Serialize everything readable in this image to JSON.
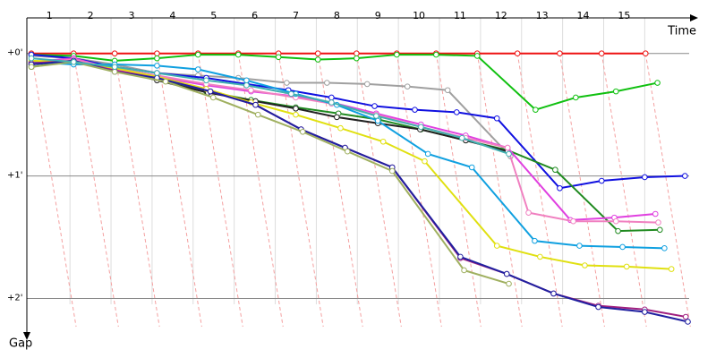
{
  "chart_data": {
    "type": "line",
    "x_label": "Time",
    "y_label": "Gap",
    "xlim": [
      0.45,
      16.8
    ],
    "xticks": [
      1,
      2,
      3,
      4,
      5,
      6,
      7,
      8,
      9,
      10,
      11,
      12,
      13,
      14,
      15
    ],
    "ylim": [
      -0.29,
      2.34
    ],
    "yticks": [
      {
        "value": 0,
        "label": "+0'"
      },
      {
        "value": 1,
        "label": "+1'"
      },
      {
        "value": 2,
        "label": "+2'"
      }
    ],
    "grid": true,
    "series": [
      {
        "color": "#ee1111",
        "x": [
          0.56,
          1.59,
          2.59,
          3.62,
          4.62,
          5.6,
          6.58,
          7.54,
          8.48,
          9.46,
          10.42,
          11.42,
          12.4,
          13.43,
          14.45,
          15.52
        ],
        "values": [
          0,
          0,
          0,
          0,
          0,
          0,
          0,
          0,
          0,
          0,
          0,
          0,
          0,
          0,
          0,
          0
        ]
      },
      {
        "color": "#10c010",
        "x": [
          0.56,
          1.59,
          2.59,
          3.62,
          4.62,
          5.6,
          6.58,
          7.54,
          8.48,
          9.46,
          10.42,
          11.42,
          12.84,
          13.82,
          14.8,
          15.81
        ],
        "values": [
          0.01,
          0.02,
          0.06,
          0.04,
          0.01,
          0.01,
          0.03,
          0.05,
          0.04,
          0.01,
          0.01,
          0.02,
          0.46,
          0.36,
          0.31,
          0.24
        ]
      },
      {
        "color": "#a0a0a0",
        "x": [
          0.56,
          1.59,
          2.59,
          3.62,
          4.62,
          5.6,
          6.78,
          7.76,
          8.74,
          9.72,
          10.7,
          12.23
        ],
        "values": [
          0.02,
          0.04,
          0.09,
          0.16,
          0.18,
          0.2,
          0.24,
          0.24,
          0.25,
          0.27,
          0.3,
          0.84
        ]
      },
      {
        "color": "#1010e0",
        "x": [
          0.56,
          1.59,
          2.59,
          3.62,
          4.82,
          5.8,
          6.82,
          7.87,
          8.92,
          9.9,
          10.92,
          11.9,
          13.43,
          14.45,
          15.5,
          16.48
        ],
        "values": [
          0.01,
          0.04,
          0.11,
          0.16,
          0.2,
          0.25,
          0.3,
          0.36,
          0.43,
          0.46,
          0.48,
          0.53,
          1.1,
          1.04,
          1.01,
          1.0
        ]
      },
      {
        "color": "#208a20",
        "x": [
          0.56,
          1.59,
          2.59,
          3.62,
          4.82,
          5.91,
          7.0,
          8.04,
          9.02,
          10.05,
          11.14,
          12.16,
          13.32,
          14.85,
          15.87
        ],
        "values": [
          0.11,
          0.06,
          0.13,
          0.2,
          0.31,
          0.38,
          0.44,
          0.49,
          0.54,
          0.62,
          0.71,
          0.79,
          0.95,
          1.45,
          1.44
        ]
      },
      {
        "color": "#222222",
        "x": [
          0.56,
          1.59,
          2.59,
          3.62,
          4.86,
          6.02,
          7.0,
          8.0,
          9.0,
          10.03,
          11.14,
          12.16
        ],
        "values": [
          0.09,
          0.05,
          0.13,
          0.22,
          0.32,
          0.39,
          0.45,
          0.52,
          0.57,
          0.62,
          0.71,
          0.8
        ]
      },
      {
        "color": "#e040e0",
        "x": [
          0.56,
          1.59,
          2.59,
          3.62,
          4.82,
          5.91,
          7.0,
          7.87,
          8.96,
          10.05,
          11.14,
          12.16,
          13.69,
          14.76,
          15.76
        ],
        "values": [
          0.07,
          0.04,
          0.13,
          0.19,
          0.26,
          0.31,
          0.35,
          0.4,
          0.49,
          0.58,
          0.67,
          0.77,
          1.36,
          1.34,
          1.31
        ]
      },
      {
        "color": "#f080c0",
        "x": [
          0.56,
          1.59,
          2.59,
          3.62,
          4.82,
          5.91,
          7.0,
          7.87,
          8.96,
          10.05,
          11.14,
          12.16,
          12.67,
          13.76,
          14.8,
          15.83
        ],
        "values": [
          0.08,
          0.05,
          0.12,
          0.18,
          0.25,
          0.3,
          0.36,
          0.41,
          0.5,
          0.6,
          0.69,
          0.77,
          1.3,
          1.37,
          1.37,
          1.38
        ]
      },
      {
        "color": "#10a0e0",
        "x": [
          0.56,
          1.59,
          2.59,
          3.62,
          4.62,
          5.8,
          7.0,
          8.0,
          9.0,
          10.22,
          11.29,
          12.82,
          13.91,
          14.96,
          15.98
        ],
        "values": [
          0.07,
          0.09,
          0.09,
          0.1,
          0.13,
          0.22,
          0.33,
          0.42,
          0.55,
          0.82,
          0.93,
          1.53,
          1.57,
          1.58,
          1.59
        ]
      },
      {
        "color": "#e0e010",
        "x": [
          0.56,
          1.59,
          2.59,
          3.62,
          4.82,
          5.91,
          7.0,
          8.09,
          9.13,
          10.14,
          11.9,
          12.95,
          14.04,
          15.06,
          16.15
        ],
        "values": [
          0.06,
          0.07,
          0.12,
          0.19,
          0.29,
          0.4,
          0.5,
          0.61,
          0.72,
          0.88,
          1.57,
          1.66,
          1.73,
          1.74,
          1.76
        ]
      },
      {
        "color": "#a02080",
        "x": [
          0.56,
          1.59,
          2.59,
          3.62,
          4.92,
          6.02,
          7.13,
          8.2,
          9.35,
          11.01,
          12.14,
          13.28,
          14.37,
          15.5,
          16.5
        ],
        "values": [
          0.08,
          0.06,
          0.14,
          0.2,
          0.31,
          0.42,
          0.62,
          0.77,
          0.93,
          1.67,
          1.8,
          1.96,
          2.06,
          2.09,
          2.15
        ]
      },
      {
        "color": "#2020a0",
        "x": [
          0.56,
          1.59,
          2.59,
          3.62,
          4.92,
          6.02,
          7.13,
          8.2,
          9.35,
          11.01,
          12.14,
          13.28,
          14.37,
          15.5,
          16.55
        ],
        "values": [
          0.09,
          0.06,
          0.15,
          0.2,
          0.31,
          0.42,
          0.62,
          0.77,
          0.93,
          1.66,
          1.8,
          1.96,
          2.07,
          2.11,
          2.19
        ]
      },
      {
        "color": "#a0b060",
        "x": [
          0.56,
          1.59,
          2.59,
          3.83,
          4.99,
          6.08,
          7.17,
          8.26,
          9.35,
          11.1,
          12.19
        ],
        "values": [
          0.11,
          0.07,
          0.15,
          0.23,
          0.36,
          0.5,
          0.64,
          0.8,
          0.96,
          1.77,
          1.88
        ]
      },
      {
        "color": "#40b0b0",
        "x": [
          0.56,
          1.59,
          2.59,
          3.62,
          4.82,
          5.8,
          6.89,
          7.87,
          8.96,
          10.05,
          11.05,
          12.19
        ],
        "values": [
          0.04,
          0.07,
          0.11,
          0.16,
          0.22,
          0.26,
          0.33,
          0.4,
          0.51,
          0.6,
          0.69,
          0.82
        ]
      }
    ]
  }
}
